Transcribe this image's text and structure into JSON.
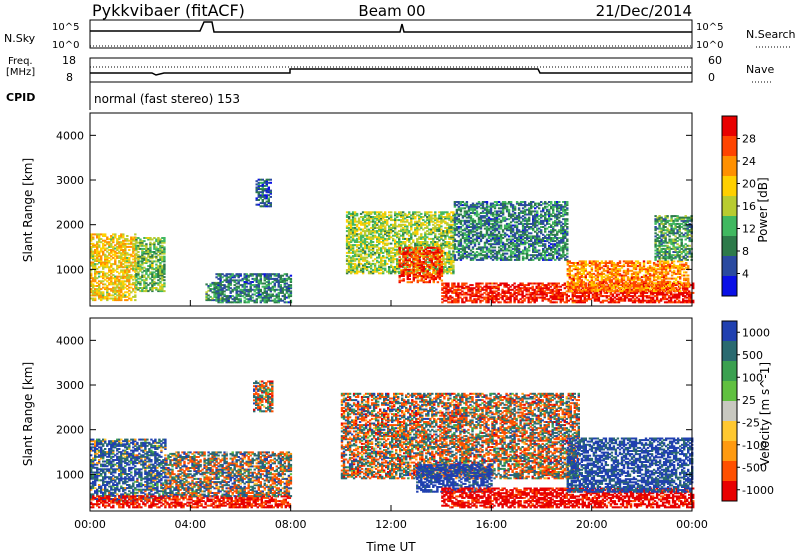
{
  "header": {
    "station": "Pykkvibaer (fitACF)",
    "beam": "Beam 00",
    "date": "21/Dec/2014"
  },
  "panels": {
    "nsky": {
      "label": "N.Sky",
      "tick_top": "10^5",
      "tick_bottom": "10^0",
      "right_tick_top": "10^5",
      "right_tick_bottom": "10^0",
      "right_label": "N.Search"
    },
    "freq": {
      "label_line1": "Freq.",
      "label_line2": "[MHz]",
      "tick_top": "18",
      "tick_bottom": "8",
      "right_tick_top": "60",
      "right_tick_bottom": "0",
      "right_label": "Nave"
    },
    "cpid": {
      "label": "CPID",
      "text": "normal (fast stereo) 153"
    }
  },
  "colors": {
    "power": [
      "#0a10e6",
      "#2a4aa0",
      "#2d7a4a",
      "#40b860",
      "#b8cc30",
      "#ffd000",
      "#ff9000",
      "#ff4400",
      "#e80000"
    ],
    "velocity": [
      "#e80000",
      "#ff5000",
      "#ff9a10",
      "#ffc830",
      "#c8c8c0",
      "#60c040",
      "#3aa050",
      "#2a6a70",
      "#2040b0"
    ]
  },
  "chart_data": [
    {
      "type": "heatmap",
      "title": "",
      "xlabel": "",
      "ylabel": "Slant Range [km]",
      "xlim": [
        "00:00",
        "24:00"
      ],
      "ylim": [
        180,
        4500
      ],
      "x_ticks": [
        "00:00",
        "04:00",
        "08:00",
        "12:00",
        "16:00",
        "20:00",
        "00:00"
      ],
      "y_ticks": [
        1000,
        2000,
        3000,
        4000
      ],
      "colorbar": {
        "label": "Power [dB]",
        "ticks": [
          "4",
          "8",
          "12",
          "16",
          "20",
          "24",
          "28"
        ],
        "range": [
          0,
          30
        ]
      },
      "regions": [
        {
          "t": [
            0.0,
            1.8
          ],
          "r": [
            300,
            1800
          ],
          "value": 18
        },
        {
          "t": [
            1.8,
            3.0
          ],
          "r": [
            500,
            1700
          ],
          "value": 12
        },
        {
          "t": [
            4.6,
            5.2
          ],
          "r": [
            300,
            700
          ],
          "value": 10
        },
        {
          "t": [
            5.0,
            8.0
          ],
          "r": [
            250,
            900
          ],
          "value": 8
        },
        {
          "t": [
            6.6,
            7.2
          ],
          "r": [
            2400,
            3000
          ],
          "value": 6
        },
        {
          "t": [
            10.2,
            14.5
          ],
          "r": [
            900,
            2300
          ],
          "value": 14
        },
        {
          "t": [
            12.3,
            14.0
          ],
          "r": [
            700,
            1500
          ],
          "value": 26
        },
        {
          "t": [
            14.5,
            19.0
          ],
          "r": [
            1200,
            2500
          ],
          "value": 8
        },
        {
          "t": [
            14.0,
            24.0
          ],
          "r": [
            250,
            700
          ],
          "value": 28
        },
        {
          "t": [
            19.0,
            23.8
          ],
          "r": [
            500,
            1200
          ],
          "value": 22
        },
        {
          "t": [
            22.5,
            24.0
          ],
          "r": [
            1200,
            2200
          ],
          "value": 10
        }
      ]
    },
    {
      "type": "heatmap",
      "title": "",
      "xlabel": "Time UT",
      "ylabel": "Slant Range [km]",
      "xlim": [
        "00:00",
        "24:00"
      ],
      "ylim": [
        180,
        4500
      ],
      "x_ticks": [
        "00:00",
        "04:00",
        "08:00",
        "12:00",
        "16:00",
        "20:00",
        "00:00"
      ],
      "y_ticks": [
        1000,
        2000,
        3000,
        4000
      ],
      "colorbar": {
        "label": "Velocity [m s^-1]",
        "ticks": [
          "1000",
          "500",
          "100",
          "25",
          "-25",
          "-100",
          "-500",
          "-1000"
        ],
        "range": [
          -1000,
          1000
        ]
      },
      "regions": [
        {
          "t": [
            0.0,
            3.0
          ],
          "r": [
            400,
            1800
          ],
          "value": 200
        },
        {
          "t": [
            0.0,
            8.0
          ],
          "r": [
            250,
            500
          ],
          "value": -300
        },
        {
          "t": [
            3.0,
            8.0
          ],
          "r": [
            500,
            1500
          ],
          "value": 50
        },
        {
          "t": [
            6.5,
            7.3
          ],
          "r": [
            2400,
            3100
          ],
          "value": 0
        },
        {
          "t": [
            10.0,
            19.5
          ],
          "r": [
            900,
            2800
          ],
          "value": 0
        },
        {
          "t": [
            13.0,
            16.0
          ],
          "r": [
            600,
            1200
          ],
          "value": 400
        },
        {
          "t": [
            14.0,
            24.0
          ],
          "r": [
            250,
            700
          ],
          "value": -400
        },
        {
          "t": [
            19.0,
            24.0
          ],
          "r": [
            600,
            1800
          ],
          "value": 300
        }
      ]
    }
  ]
}
